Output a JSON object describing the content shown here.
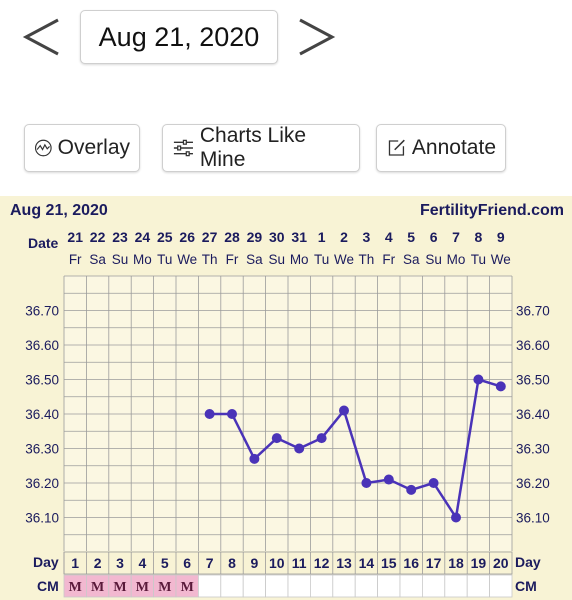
{
  "nav": {
    "date": "Aug 21, 2020",
    "prev_icon": "chevron-left-icon",
    "next_icon": "chevron-right-icon"
  },
  "toolbar": {
    "overlay_label": "Overlay",
    "overlay_icon": "overlay-wave-icon",
    "charts_like_mine_label": "Charts Like Mine",
    "charts_like_mine_icon": "sliders-icon",
    "annotate_label": "Annotate",
    "annotate_icon": "edit-note-icon"
  },
  "chart": {
    "date_title": "Aug 21, 2020",
    "site": "FertilityFriend.com",
    "date_row_label": "Date",
    "day_row_label": "Day",
    "cm_row_label": "CM",
    "line_color": "#4a33b8",
    "grid_color": "#9b9b9b",
    "bg_color": "#f8f3d5",
    "cm_color": "#f2b8d0"
  },
  "chart_data": {
    "type": "line",
    "dates": [
      "21",
      "22",
      "23",
      "24",
      "25",
      "26",
      "27",
      "28",
      "29",
      "30",
      "31",
      "1",
      "2",
      "3",
      "4",
      "5",
      "6",
      "7",
      "8",
      "9"
    ],
    "weekdays": [
      "Fr",
      "Sa",
      "Su",
      "Mo",
      "Tu",
      "We",
      "Th",
      "Fr",
      "Sa",
      "Su",
      "Mo",
      "Tu",
      "We",
      "Th",
      "Fr",
      "Sa",
      "Su",
      "Mo",
      "Tu",
      "We"
    ],
    "cycle_days": [
      1,
      2,
      3,
      4,
      5,
      6,
      7,
      8,
      9,
      10,
      11,
      12,
      13,
      14,
      15,
      16,
      17,
      18,
      19,
      20
    ],
    "cm": [
      "M",
      "M",
      "M",
      "M",
      "M",
      "M",
      "",
      "",
      "",
      "",
      "",
      "",
      "",
      "",
      "",
      "",
      "",
      "",
      "",
      ""
    ],
    "temperatures": [
      null,
      null,
      null,
      null,
      null,
      null,
      36.4,
      36.4,
      36.27,
      36.33,
      36.3,
      36.33,
      36.41,
      36.2,
      36.21,
      36.18,
      36.2,
      36.1,
      36.5,
      36.48
    ],
    "y_ticks": [
      "36.70",
      "36.60",
      "36.50",
      "36.40",
      "36.30",
      "36.20",
      "36.10"
    ],
    "ylim": [
      36.0,
      36.8
    ],
    "grid": true
  }
}
